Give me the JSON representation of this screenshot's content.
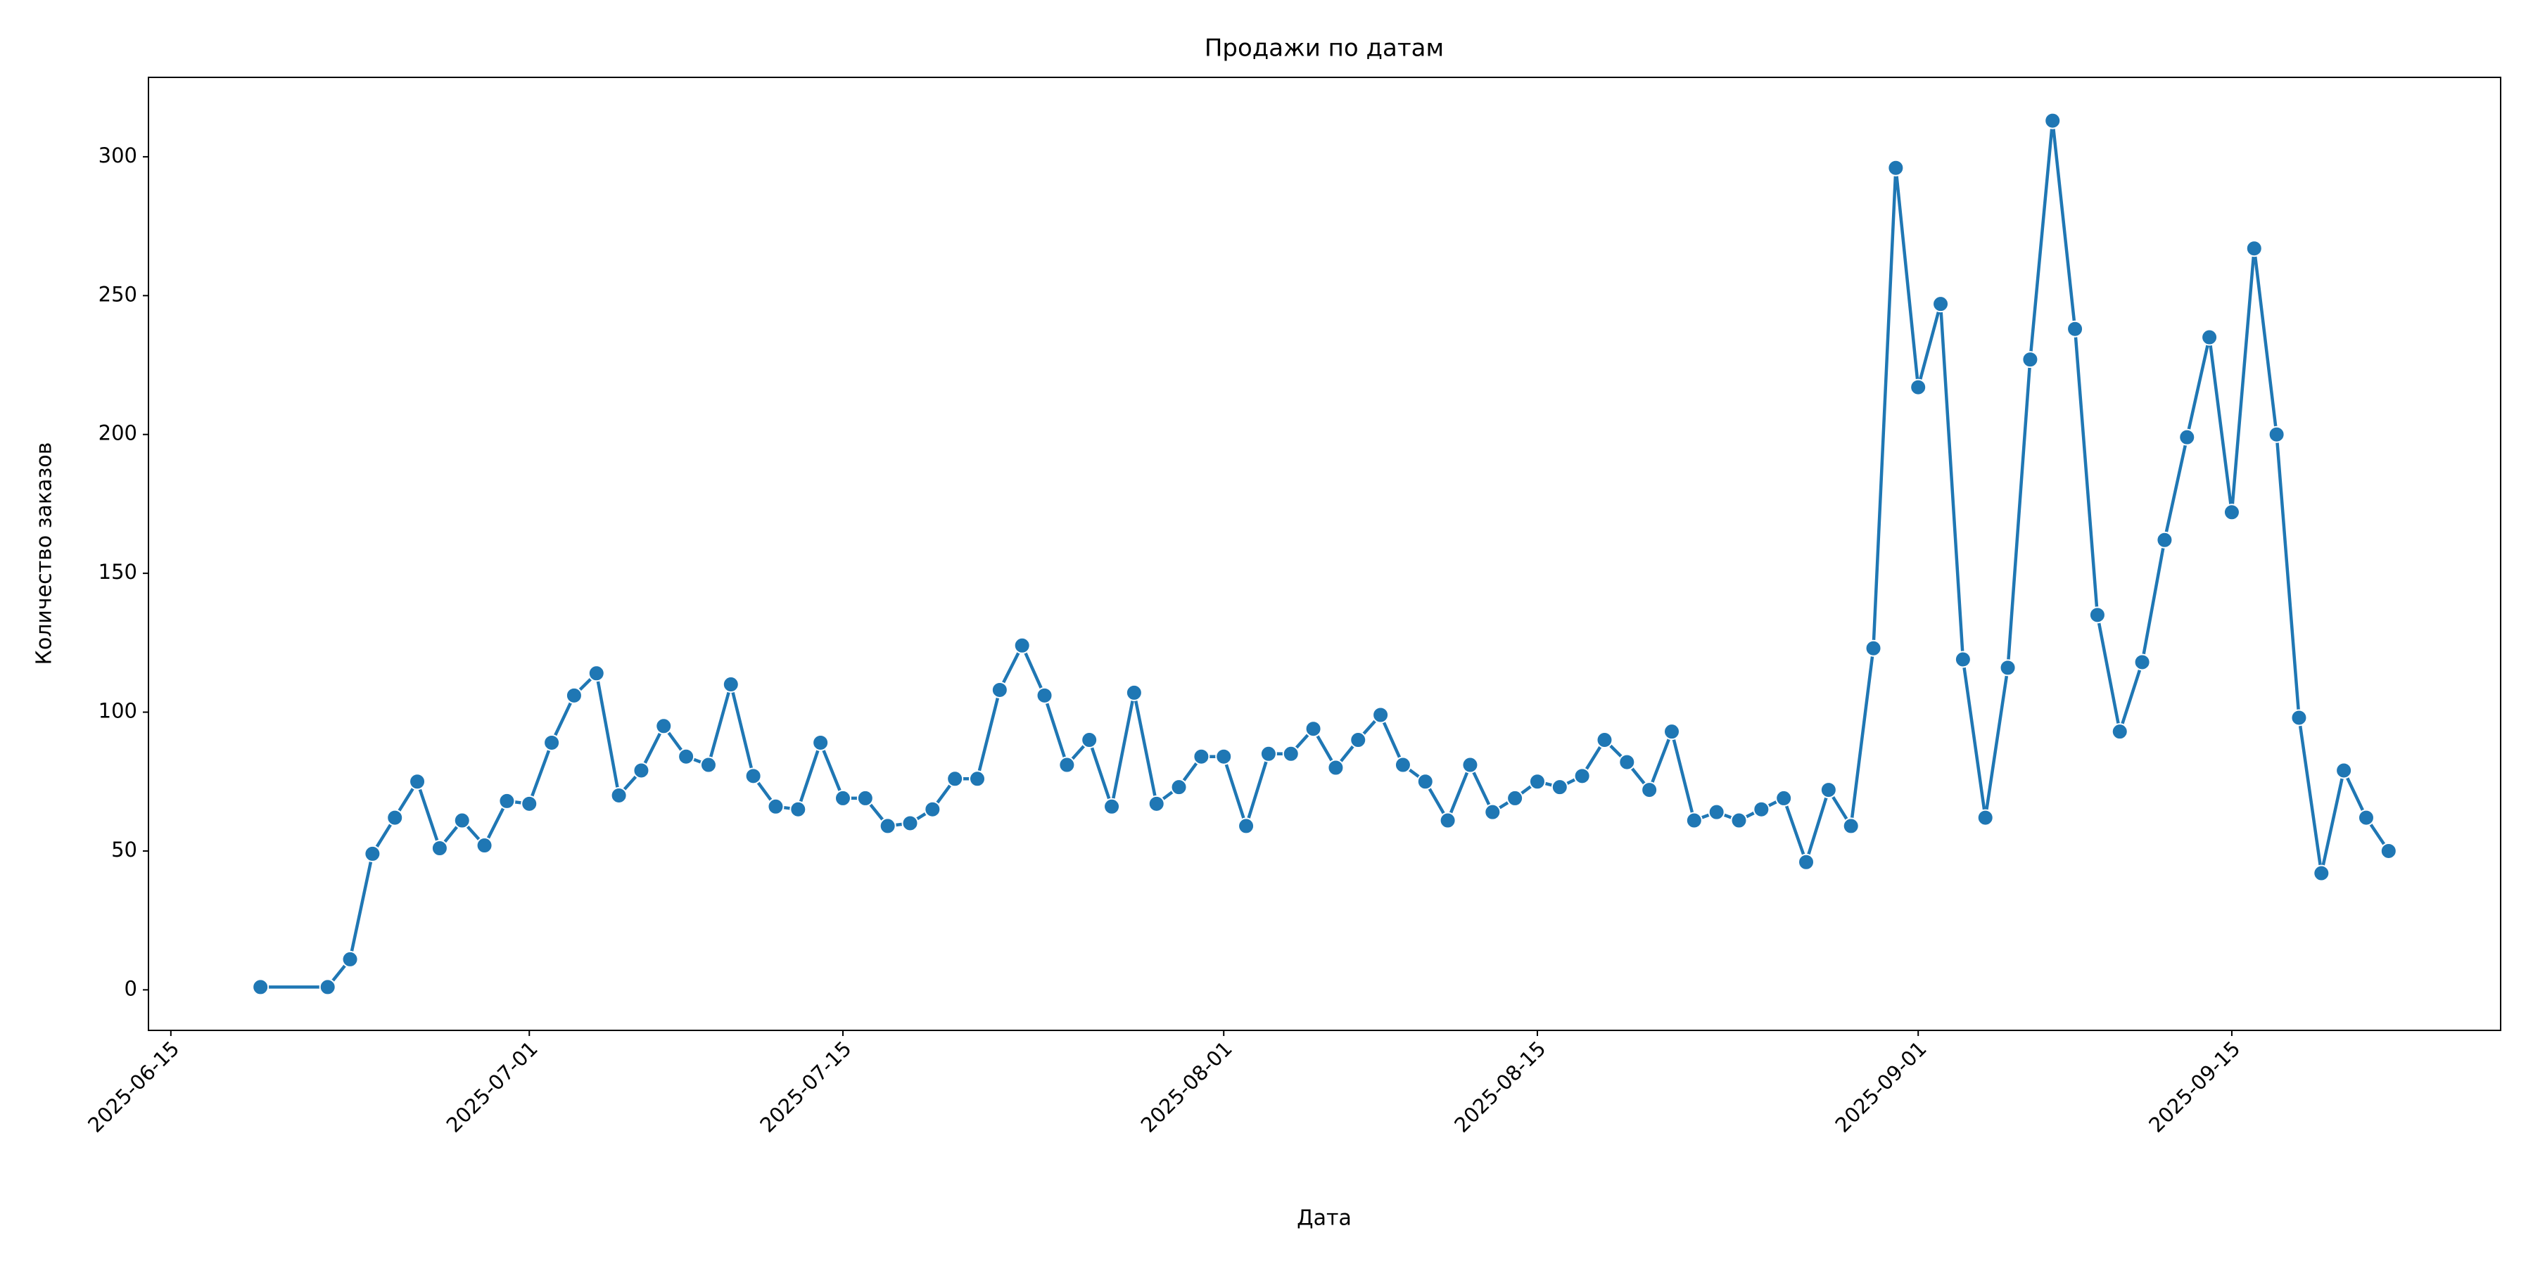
{
  "chart_data": {
    "type": "line",
    "title": "Продажи по датам",
    "xlabel": "Дата",
    "ylabel": "Количество заказов",
    "color": "#1f77b4",
    "marker": true,
    "x": [
      "2025-06-19",
      "2025-06-22",
      "2025-06-23",
      "2025-06-24",
      "2025-06-25",
      "2025-06-26",
      "2025-06-27",
      "2025-06-28",
      "2025-06-29",
      "2025-06-30",
      "2025-07-01",
      "2025-07-02",
      "2025-07-03",
      "2025-07-04",
      "2025-07-05",
      "2025-07-06",
      "2025-07-07",
      "2025-07-08",
      "2025-07-09",
      "2025-07-10",
      "2025-07-11",
      "2025-07-12",
      "2025-07-13",
      "2025-07-14",
      "2025-07-15",
      "2025-07-16",
      "2025-07-17",
      "2025-07-18",
      "2025-07-19",
      "2025-07-20",
      "2025-07-21",
      "2025-07-22",
      "2025-07-23",
      "2025-07-24",
      "2025-07-25",
      "2025-07-26",
      "2025-07-27",
      "2025-07-28",
      "2025-07-29",
      "2025-07-30",
      "2025-07-31",
      "2025-08-01",
      "2025-08-02",
      "2025-08-03",
      "2025-08-04",
      "2025-08-05",
      "2025-08-06",
      "2025-08-07",
      "2025-08-08",
      "2025-08-09",
      "2025-08-10",
      "2025-08-11",
      "2025-08-12",
      "2025-08-13",
      "2025-08-14",
      "2025-08-15",
      "2025-08-16",
      "2025-08-17",
      "2025-08-18",
      "2025-08-19",
      "2025-08-20",
      "2025-08-21",
      "2025-08-22",
      "2025-08-23",
      "2025-08-24",
      "2025-08-25",
      "2025-08-26",
      "2025-08-27",
      "2025-08-28",
      "2025-08-29",
      "2025-08-30",
      "2025-08-31",
      "2025-09-01",
      "2025-09-02",
      "2025-09-03",
      "2025-09-04",
      "2025-09-05",
      "2025-09-06",
      "2025-09-07",
      "2025-09-08",
      "2025-09-09",
      "2025-09-10",
      "2025-09-11",
      "2025-09-12",
      "2025-09-13",
      "2025-09-14",
      "2025-09-15",
      "2025-09-16",
      "2025-09-17",
      "2025-09-18",
      "2025-09-19",
      "2025-09-20",
      "2025-09-21",
      "2025-09-22"
    ],
    "values": [
      1,
      1,
      11,
      49,
      62,
      75,
      51,
      61,
      52,
      68,
      67,
      89,
      106,
      114,
      70,
      79,
      95,
      84,
      81,
      110,
      77,
      66,
      65,
      89,
      69,
      69,
      59,
      60,
      65,
      76,
      76,
      108,
      124,
      106,
      81,
      90,
      66,
      107,
      67,
      73,
      84,
      84,
      59,
      85,
      85,
      94,
      80,
      90,
      99,
      81,
      75,
      61,
      81,
      64,
      69,
      75,
      73,
      77,
      90,
      82,
      72,
      93,
      61,
      64,
      61,
      65,
      69,
      46,
      72,
      59,
      123,
      296,
      217,
      247,
      119,
      62,
      116,
      227,
      313,
      238,
      135,
      93,
      118,
      162,
      199,
      235,
      172,
      267,
      200,
      98,
      42,
      79,
      62,
      50
    ],
    "xlim": [
      "2025-06-14",
      "2025-09-27"
    ],
    "xticks": [
      "2025-06-15",
      "2025-07-01",
      "2025-07-15",
      "2025-08-01",
      "2025-08-15",
      "2025-09-01",
      "2025-09-15"
    ],
    "ylim": [
      -14.6,
      328.6
    ],
    "yticks": [
      0,
      50,
      100,
      150,
      200,
      250,
      300
    ],
    "grid": false
  }
}
